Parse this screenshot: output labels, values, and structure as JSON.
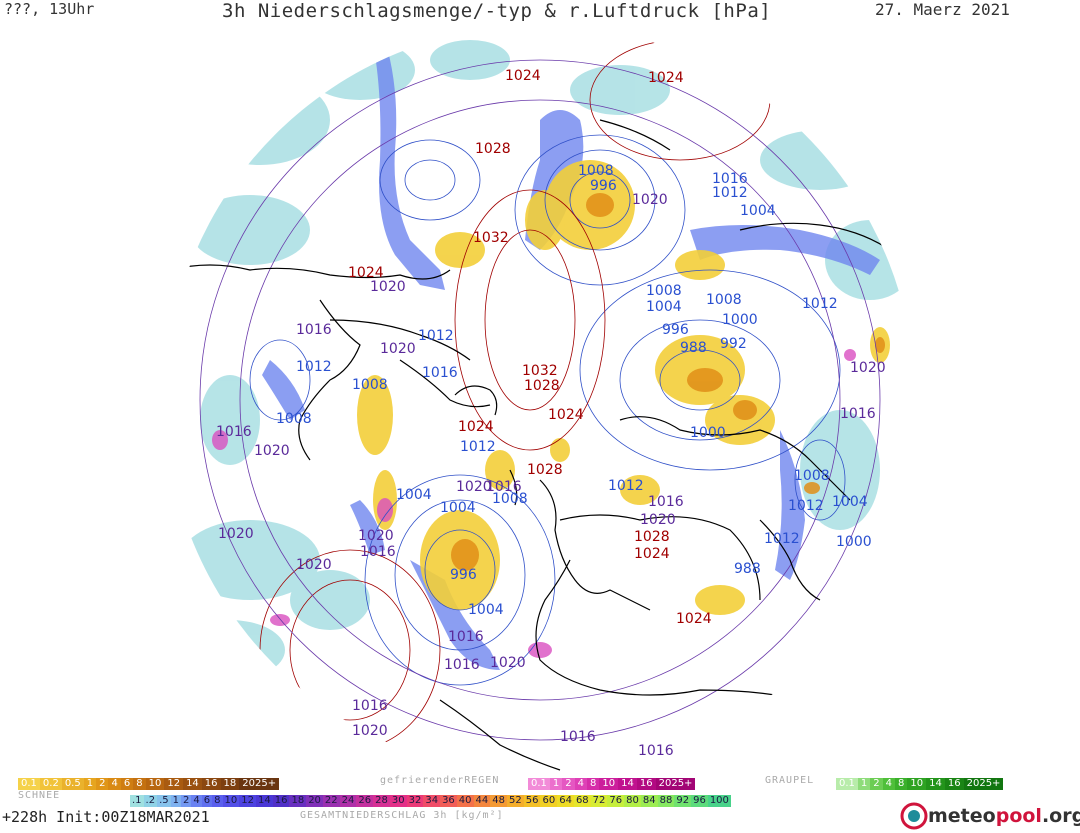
{
  "header": {
    "left": "???, 13Uhr",
    "title": "3h Niederschlagsmenge/-typ & r.Luftdruck [hPa]",
    "date": "27. Maerz 2021"
  },
  "footer": {
    "forecast": "+228h Init:00Z18MAR2021",
    "logo_text": "meteopool.org",
    "logo_accent": "pool"
  },
  "legend": {
    "snow": {
      "label": "SCHNEE",
      "values": [
        "0.1",
        "0.2",
        "0.5",
        "1",
        "2",
        "4",
        "6",
        "8",
        "10",
        "12",
        "14",
        "16",
        "18",
        "2025+"
      ],
      "colors": [
        "#f5d24a",
        "#f1c33a",
        "#eab22c",
        "#e6a51f",
        "#e09618",
        "#d98a13",
        "#cf7d12",
        "#c47111",
        "#b86610",
        "#a95b10",
        "#9a5110",
        "#8b4710",
        "#7d3f10",
        "#6a3510"
      ]
    },
    "freezing_rain": {
      "label": "gefrierenderREGEN",
      "values": [
        "0.1",
        "1",
        "2",
        "4",
        "8",
        "10",
        "14",
        "16",
        "2025+"
      ],
      "colors": [
        "#f28bd8",
        "#ec6fcd",
        "#e557c2",
        "#de41b6",
        "#d62da9",
        "#cc1e9c",
        "#c0128f",
        "#b20a82",
        "#a20575"
      ]
    },
    "graupel": {
      "label": "GRAUPEL",
      "values": [
        "0.1",
        "1",
        "2",
        "4",
        "8",
        "10",
        "14",
        "16",
        "2025+"
      ],
      "colors": [
        "#b8ecaa",
        "#8edc7a",
        "#6ccd54",
        "#4fbf3a",
        "#3bb02b",
        "#2ea322",
        "#23941b",
        "#1a8515",
        "#127610"
      ]
    },
    "total": {
      "label": "GESAMTNIEDERSCHLAG 3h [kg/m²]",
      "values": [
        ".1",
        ".2",
        ".5",
        "1",
        "2",
        "4",
        "6",
        "8",
        "10",
        "12",
        "14",
        "16",
        "18",
        "20",
        "22",
        "24",
        "26",
        "28",
        "30",
        "32",
        "34",
        "36",
        "40",
        "44",
        "48",
        "52",
        "56",
        "60",
        "64",
        "68",
        "72",
        "76",
        "80",
        "84",
        "88",
        "92",
        "96",
        "100"
      ],
      "colors": [
        "#9fe0e0",
        "#8fd2e6",
        "#87c3ec",
        "#7fb2f0",
        "#7499f2",
        "#6a82f2",
        "#6070f0",
        "#5a5fee",
        "#5350e8",
        "#4d43e0",
        "#4a37d6",
        "#5030c8",
        "#6830c0",
        "#8030b8",
        "#9a30b0",
        "#b030a8",
        "#c4309e",
        "#d63094",
        "#e43088",
        "#ec3a78",
        "#f04c68",
        "#f25e58",
        "#f4724a",
        "#f4863e",
        "#f49a34",
        "#f4ae2c",
        "#f4c026",
        "#f2d024",
        "#eedc26",
        "#e6e62c",
        "#d8ec34",
        "#c6ee3c",
        "#b2ee46",
        "#9cec52",
        "#86e860",
        "#70e26e",
        "#5cdb7c",
        "#48d28a"
      ]
    }
  },
  "isobars": [
    {
      "v": "1024",
      "c": "#a00000"
    },
    {
      "v": "1024",
      "c": "#a00000"
    },
    {
      "v": "1028",
      "c": "#a00000"
    },
    {
      "v": "1008",
      "c": "#2a50d0"
    },
    {
      "v": "996",
      "c": "#2a50d0"
    },
    {
      "v": "1020",
      "c": "#5a2a9a"
    },
    {
      "v": "1016",
      "c": "#2a50d0"
    },
    {
      "v": "1012",
      "c": "#2a50d0"
    },
    {
      "v": "1004",
      "c": "#2a50d0"
    },
    {
      "v": "1032",
      "c": "#a00000"
    },
    {
      "v": "1024",
      "c": "#a00000"
    },
    {
      "v": "1020",
      "c": "#5a2a9a"
    },
    {
      "v": "1008",
      "c": "#2a50d0"
    },
    {
      "v": "1004",
      "c": "#2a50d0"
    },
    {
      "v": "1008",
      "c": "#2a50d0"
    },
    {
      "v": "1012",
      "c": "#2a50d0"
    },
    {
      "v": "1016",
      "c": "#5a2a9a"
    },
    {
      "v": "1012",
      "c": "#2a50d0"
    },
    {
      "v": "1020",
      "c": "#5a2a9a"
    },
    {
      "v": "996",
      "c": "#2a50d0"
    },
    {
      "v": "1000",
      "c": "#2a50d0"
    },
    {
      "v": "988",
      "c": "#2a50d0"
    },
    {
      "v": "992",
      "c": "#2a50d0"
    },
    {
      "v": "1012",
      "c": "#2a50d0"
    },
    {
      "v": "1016",
      "c": "#2a50d0"
    },
    {
      "v": "1008",
      "c": "#2a50d0"
    },
    {
      "v": "1032",
      "c": "#a00000"
    },
    {
      "v": "1028",
      "c": "#a00000"
    },
    {
      "v": "1020",
      "c": "#5a2a9a"
    },
    {
      "v": "1008",
      "c": "#2a50d0"
    },
    {
      "v": "1024",
      "c": "#a00000"
    },
    {
      "v": "1000",
      "c": "#2a50d0"
    },
    {
      "v": "1016",
      "c": "#5a2a9a"
    },
    {
      "v": "1016",
      "c": "#5a2a9a"
    },
    {
      "v": "1012",
      "c": "#2a50d0"
    },
    {
      "v": "1024",
      "c": "#a00000"
    },
    {
      "v": "1020",
      "c": "#5a2a9a"
    },
    {
      "v": "1028",
      "c": "#a00000"
    },
    {
      "v": "1012",
      "c": "#2a50d0"
    },
    {
      "v": "1008",
      "c": "#2a50d0"
    },
    {
      "v": "1020",
      "c": "#5a2a9a"
    },
    {
      "v": "1016",
      "c": "#5a2a9a"
    },
    {
      "v": "1004",
      "c": "#2a50d0"
    },
    {
      "v": "1008",
      "c": "#2a50d0"
    },
    {
      "v": "1004",
      "c": "#2a50d0"
    },
    {
      "v": "1012",
      "c": "#2a50d0"
    },
    {
      "v": "1016",
      "c": "#5a2a9a"
    },
    {
      "v": "1020",
      "c": "#5a2a9a"
    },
    {
      "v": "1020",
      "c": "#5a2a9a"
    },
    {
      "v": "1016",
      "c": "#5a2a9a"
    },
    {
      "v": "1012",
      "c": "#2a50d0"
    },
    {
      "v": "1000",
      "c": "#2a50d0"
    },
    {
      "v": "1004",
      "c": "#2a50d0"
    },
    {
      "v": "1016",
      "c": "#5a2a9a"
    },
    {
      "v": "1020",
      "c": "#5a2a9a"
    },
    {
      "v": "1020",
      "c": "#5a2a9a"
    },
    {
      "v": "988",
      "c": "#2a50d0"
    },
    {
      "v": "996",
      "c": "#2a50d0"
    },
    {
      "v": "1004",
      "c": "#2a50d0"
    },
    {
      "v": "1016",
      "c": "#5a2a9a"
    },
    {
      "v": "1020",
      "c": "#5a2a9a"
    },
    {
      "v": "1024",
      "c": "#a00000"
    },
    {
      "v": "1028",
      "c": "#a00000"
    },
    {
      "v": "1024",
      "c": "#a00000"
    },
    {
      "v": "1016",
      "c": "#5a2a9a"
    },
    {
      "v": "1020",
      "c": "#5a2a9a"
    },
    {
      "v": "1016",
      "c": "#5a2a9a"
    },
    {
      "v": "1016",
      "c": "#5a2a9a"
    },
    {
      "v": "1020",
      "c": "#5a2a9a"
    }
  ]
}
